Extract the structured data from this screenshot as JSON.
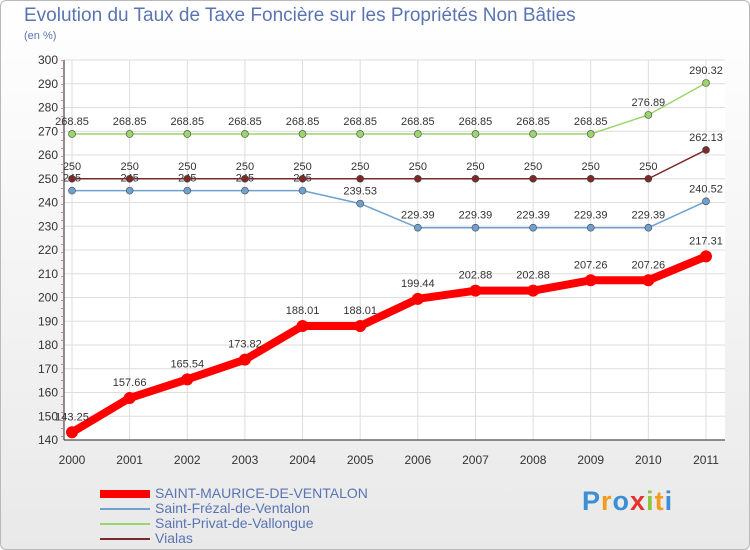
{
  "chart_data": {
    "type": "line",
    "title": "Evolution du Taux de Taxe Foncière sur les Propriétés Non Bâties",
    "subtitle": "(en %)",
    "xlabel": "",
    "ylabel": "(en %)",
    "x": [
      "2000",
      "2001",
      "2002",
      "2003",
      "2004",
      "2005",
      "2006",
      "2007",
      "2008",
      "2009",
      "2010",
      "2011"
    ],
    "ylim": [
      140,
      300
    ],
    "ytick_step": 10,
    "grid": true,
    "legend_position": "bottom-left",
    "series": [
      {
        "name": "SAINT-MAURICE-DE-VENTALON",
        "color": "#ff0000",
        "emphasis": true,
        "values": [
          143.25,
          157.66,
          165.54,
          173.82,
          188.01,
          188.01,
          199.44,
          202.88,
          202.88,
          207.26,
          207.26,
          217.31
        ],
        "labels": [
          "143.25",
          "157.66",
          "165.54",
          "173.82",
          "188.01",
          "188.01",
          "199.44",
          "202.88",
          "202.88",
          "207.26",
          "207.26",
          "217.31"
        ]
      },
      {
        "name": "Saint-Frézal-de-Ventalon",
        "color": "#6fa0cf",
        "emphasis": false,
        "values": [
          245,
          245,
          245,
          245,
          245,
          239.53,
          229.39,
          229.39,
          229.39,
          229.39,
          229.39,
          240.52
        ],
        "labels": [
          "245",
          "245",
          "245",
          "245",
          "245",
          "239.53",
          "229.39",
          "229.39",
          "229.39",
          "229.39",
          "229.39",
          "240.52"
        ]
      },
      {
        "name": "Saint-Privat-de-Vallongue",
        "color": "#9ad66b",
        "emphasis": false,
        "values": [
          268.85,
          268.85,
          268.85,
          268.85,
          268.85,
          268.85,
          268.85,
          268.85,
          268.85,
          268.85,
          276.89,
          290.32
        ],
        "labels": [
          "268.85",
          "268.85",
          "268.85",
          "268.85",
          "268.85",
          "268.85",
          "268.85",
          "268.85",
          "268.85",
          "268.85",
          "276.89",
          "290.32"
        ]
      },
      {
        "name": "Vialas",
        "color": "#7a2a2a",
        "emphasis": false,
        "values": [
          250,
          250,
          250,
          250,
          250,
          250,
          250,
          250,
          250,
          250,
          250,
          262.13
        ],
        "labels": [
          "250",
          "250",
          "250",
          "250",
          "250",
          "250",
          "250",
          "250",
          "250",
          "250",
          "250",
          "262.13"
        ]
      }
    ]
  },
  "branding": {
    "text": "Proxiti",
    "letters": [
      "P",
      "r",
      "o",
      "x",
      "i",
      "t",
      "i"
    ],
    "colors": [
      "#3c8fd6",
      "#f29b1f",
      "#3c8fd6",
      "#e5322d",
      "#8cc63f",
      "#f29b1f",
      "#3c8fd6"
    ]
  }
}
